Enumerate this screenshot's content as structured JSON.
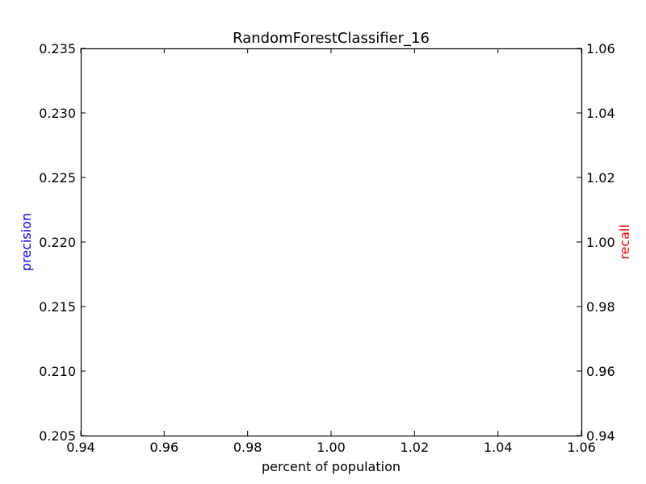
{
  "chart_data": {
    "type": "line",
    "title": "RandomForestClassifier_16",
    "xlabel": "percent of population",
    "ylabel_left": "precision",
    "ylabel_right": "recall",
    "xlim": [
      0.94,
      1.06
    ],
    "ylim_left": [
      0.205,
      0.235
    ],
    "ylim_right": [
      0.94,
      1.06
    ],
    "x_ticks": [
      "0.94",
      "0.96",
      "0.98",
      "1.00",
      "1.02",
      "1.04",
      "1.06"
    ],
    "y_left_ticks": [
      "0.205",
      "0.210",
      "0.215",
      "0.220",
      "0.225",
      "0.230",
      "0.235"
    ],
    "y_right_ticks": [
      "0.94",
      "0.96",
      "0.98",
      "1.00",
      "1.02",
      "1.04",
      "1.06"
    ],
    "grid": false,
    "series": [],
    "colors": {
      "precision": "#0000ff",
      "recall": "#ff0000",
      "axes": "#000000"
    }
  }
}
